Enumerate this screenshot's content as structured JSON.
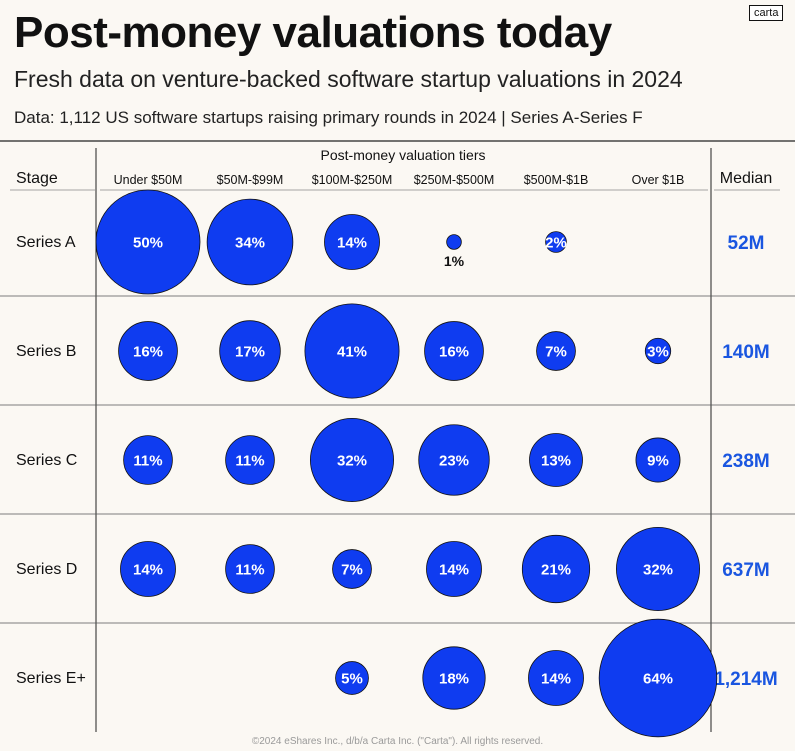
{
  "header": {
    "title": "Post-money valuations today",
    "subtitle": "Fresh data on venture-backed software startup valuations in 2024",
    "source": "Data: 1,112 US software startups raising primary rounds in 2024 | Series A-Series F",
    "logo": "carta"
  },
  "footer": "©2024 eShares Inc., d/b/a Carta Inc. (\"Carta\"). All rights reserved.",
  "colors": {
    "bubble": "#0f3cf0",
    "median": "#1a56e0",
    "background": "#fbf8f3"
  },
  "chart_data": {
    "type": "bubble-matrix",
    "group_label": "Post-money valuation tiers",
    "row_header": "Stage",
    "median_header": "Median",
    "categories": [
      "Under $50M",
      "$50M-$99M",
      "$100M-$250M",
      "$250M-$500M",
      "$500M-$1B",
      "Over $1B"
    ],
    "rows": [
      {
        "stage": "Series A",
        "median": "52M",
        "values": [
          50,
          34,
          14,
          1,
          2,
          null
        ]
      },
      {
        "stage": "Series B",
        "median": "140M",
        "values": [
          16,
          17,
          41,
          16,
          7,
          3
        ]
      },
      {
        "stage": "Series C",
        "median": "238M",
        "values": [
          11,
          11,
          32,
          23,
          13,
          9
        ]
      },
      {
        "stage": "Series D",
        "median": "637M",
        "values": [
          14,
          11,
          7,
          14,
          21,
          32
        ]
      },
      {
        "stage": "Series E+",
        "median": "1,214M",
        "values": [
          null,
          null,
          5,
          18,
          14,
          64
        ]
      }
    ],
    "unit": "%"
  }
}
